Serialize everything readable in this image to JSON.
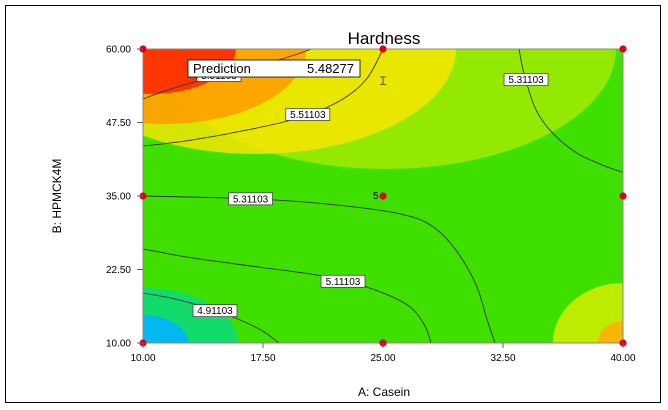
{
  "chart_data": {
    "type": "contour",
    "title": "Hardness",
    "xlabel": "A: Casein",
    "ylabel": "B: HPMCK4M",
    "xlim": [
      10,
      40
    ],
    "ylim": [
      10,
      60
    ],
    "x_ticks": [
      "10.00",
      "17.50",
      "25.00",
      "32.50",
      "40.00"
    ],
    "y_ticks": [
      "10.00",
      "22.50",
      "35.00",
      "47.50",
      "60.00"
    ],
    "contour_lines": [
      {
        "label": "5.51103",
        "value": 5.51103,
        "points": [
          [
            10.0,
            51.5
          ],
          [
            11.5,
            53
          ],
          [
            14,
            55
          ],
          [
            17,
            57
          ],
          [
            19.5,
            59
          ],
          [
            20.5,
            60
          ]
        ]
      },
      {
        "label": "5.51103",
        "value": 5.51103,
        "points": [
          [
            10.0,
            43.5
          ],
          [
            13,
            44.5
          ],
          [
            17,
            46.5
          ],
          [
            20,
            48.5
          ],
          [
            22.5,
            51.5
          ],
          [
            24,
            55
          ],
          [
            25,
            60
          ]
        ]
      },
      {
        "label": "5.31103",
        "value": 5.31103,
        "points": [
          [
            33.5,
            60
          ],
          [
            33.8,
            56
          ],
          [
            34.5,
            50
          ],
          [
            35.5,
            46
          ],
          [
            37,
            42.5
          ],
          [
            38.5,
            40.5
          ],
          [
            40,
            39
          ]
        ]
      },
      {
        "label": "5.31103",
        "value": 5.31103,
        "points": [
          [
            10.0,
            35.0
          ],
          [
            17,
            34.5
          ],
          [
            22,
            33.5
          ],
          [
            26,
            32
          ],
          [
            28,
            30
          ],
          [
            29.5,
            26
          ],
          [
            30.8,
            20
          ],
          [
            31.5,
            14
          ],
          [
            32.0,
            10
          ]
        ]
      },
      {
        "label": "5.11103",
        "value": 5.11103,
        "points": [
          [
            10.0,
            26.0
          ],
          [
            13,
            24.5
          ],
          [
            17,
            23
          ],
          [
            21,
            21.5
          ],
          [
            24,
            19.5
          ],
          [
            26.5,
            16.5
          ],
          [
            27.6,
            13
          ],
          [
            28.0,
            10
          ]
        ]
      },
      {
        "label": "4.91103",
        "value": 4.91103,
        "points": [
          [
            10.0,
            18.5
          ],
          [
            12,
            17.5
          ],
          [
            14,
            16
          ],
          [
            16,
            14
          ],
          [
            17.5,
            12
          ],
          [
            18.5,
            10
          ]
        ]
      }
    ],
    "design_points": [
      [
        10,
        10
      ],
      [
        25,
        10
      ],
      [
        40,
        10
      ],
      [
        10,
        35
      ],
      [
        25,
        35
      ],
      [
        40,
        35
      ],
      [
        10,
        60
      ],
      [
        25,
        60
      ],
      [
        40,
        60
      ]
    ],
    "center_point_count": "5",
    "prediction": {
      "label": "Prediction",
      "value": "5.48277",
      "x": 25,
      "y": 55
    },
    "colors": {
      "high": "#ff0000",
      "mid": "#ffff00",
      "low": "#00ff00",
      "lowest": "#00b0ff",
      "design_point": "#e0001b"
    }
  }
}
